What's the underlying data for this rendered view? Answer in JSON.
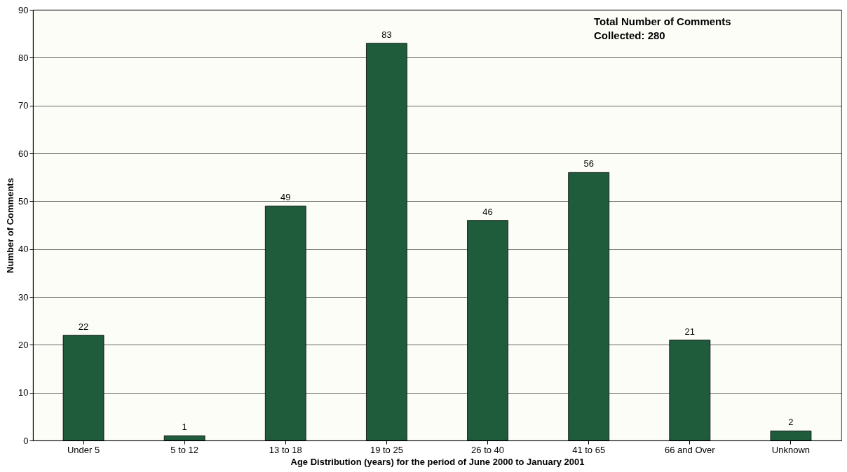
{
  "chart_data": {
    "type": "bar",
    "xlabel": "Age Distribution (years)  for the period of June 2000 to January 2001",
    "ylabel": "Number of Comments",
    "categories": [
      "Under 5",
      "5 to 12",
      "13 to 18",
      "19 to 25",
      "26 to 40",
      "41 to 65",
      "66 and Over",
      "Unknown"
    ],
    "values": [
      22,
      1,
      49,
      83,
      46,
      56,
      21,
      2
    ],
    "color": "#1f5c3c",
    "ylim": [
      0,
      90
    ],
    "yticks": [
      0,
      10,
      20,
      30,
      40,
      50,
      60,
      70,
      80,
      90
    ],
    "grid": "y",
    "data_labels": true,
    "annotations": [
      "Total Number of Comments\nCollected: 280"
    ]
  }
}
